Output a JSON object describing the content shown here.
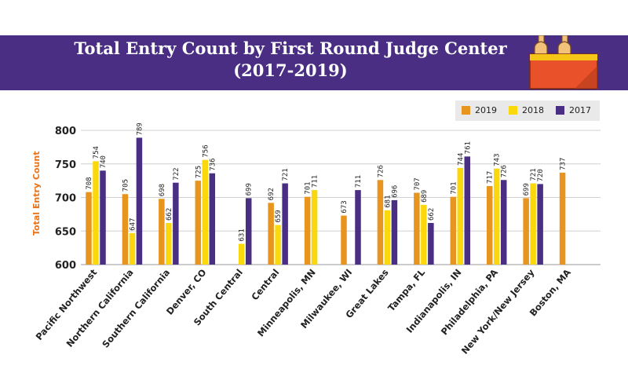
{
  "header": {
    "title": "Total Entry Count by First Round Judge Center",
    "subtitle": "(2017-2019)",
    "icon": "beer-bottle-crate-icon"
  },
  "legend": {
    "items": [
      {
        "label": "2019",
        "color": "#e8951f"
      },
      {
        "label": "2018",
        "color": "#fbd80c"
      },
      {
        "label": "2017",
        "color": "#4a2e83"
      }
    ]
  },
  "chart_data": {
    "type": "bar",
    "title": "Total Entry Count by First Round Judge Center",
    "subtitle": "(2017-2019)",
    "xlabel": "",
    "ylabel": "Total Entry Count",
    "ylim": [
      600,
      800
    ],
    "yticks": [
      600,
      650,
      700,
      750,
      800
    ],
    "grid": true,
    "legend_position": "top-right",
    "categories": [
      "Pacific Northwest",
      "Northern California",
      "Southern California",
      "Denver, CO",
      "South Central",
      "Central",
      "Minneapolis, MN",
      "Milwaukee, WI",
      "Great Lakes",
      "Tampa, FL",
      "Indianapolis, IN",
      "Philadelphia, PA",
      "New York/New Jersey",
      "Boston, MA"
    ],
    "series": [
      {
        "name": "2019",
        "color": "#e8951f",
        "values": [
          708,
          705,
          698,
          725,
          null,
          692,
          701,
          673,
          726,
          707,
          701,
          717,
          699,
          737
        ]
      },
      {
        "name": "2018",
        "color": "#fbd80c",
        "values": [
          754,
          647,
          662,
          756,
          631,
          659,
          711,
          null,
          681,
          689,
          744,
          743,
          721,
          null
        ]
      },
      {
        "name": "2017",
        "color": "#4a2e83",
        "values": [
          740,
          789,
          722,
          736,
          699,
          721,
          null,
          711,
          696,
          662,
          761,
          726,
          720,
          null
        ]
      }
    ]
  }
}
